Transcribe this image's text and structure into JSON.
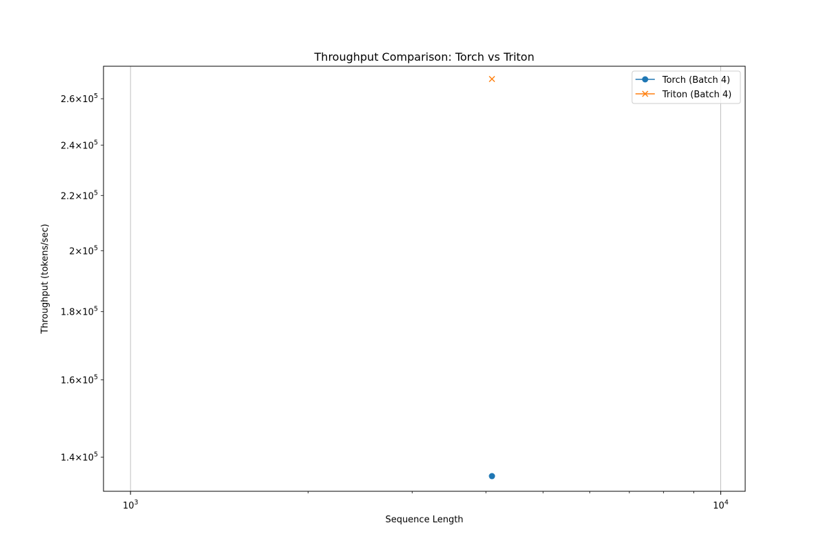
{
  "chart_data": {
    "type": "line",
    "title": "Throughput Comparison: Torch vs Triton",
    "xlabel": "Sequence Length",
    "ylabel": "Throughput (tokens/sec)",
    "xscale": "log",
    "yscale": "log",
    "xlim": [
      900,
      11000
    ],
    "ylim": [
      132000,
      275000
    ],
    "grid": "x-major",
    "legend_position": "top-right",
    "x_major_ticks": [
      {
        "value": 1000,
        "mantissa": "10",
        "exponent": "3"
      },
      {
        "value": 10000,
        "mantissa": "10",
        "exponent": "4"
      }
    ],
    "x_minor_ticks": [
      2000,
      3000,
      4000,
      5000,
      6000,
      7000,
      8000,
      9000
    ],
    "y_ticks": [
      {
        "value": 140000,
        "mantissa": "1.4",
        "exponent": "5"
      },
      {
        "value": 160000,
        "mantissa": "1.6",
        "exponent": "5"
      },
      {
        "value": 180000,
        "mantissa": "1.8",
        "exponent": "5"
      },
      {
        "value": 200000,
        "mantissa": "2",
        "exponent": "5"
      },
      {
        "value": 220000,
        "mantissa": "2.2",
        "exponent": "5"
      },
      {
        "value": 240000,
        "mantissa": "2.4",
        "exponent": "5"
      },
      {
        "value": 260000,
        "mantissa": "2.6",
        "exponent": "5"
      }
    ],
    "series": [
      {
        "name": "Torch (Batch 4)",
        "color": "#1f77b4",
        "marker": "circle",
        "points": [
          {
            "x": 4096,
            "y": 135500
          }
        ]
      },
      {
        "name": "Triton (Batch 4)",
        "color": "#ff7f0e",
        "marker": "x",
        "points": [
          {
            "x": 4096,
            "y": 269000
          }
        ]
      }
    ]
  }
}
